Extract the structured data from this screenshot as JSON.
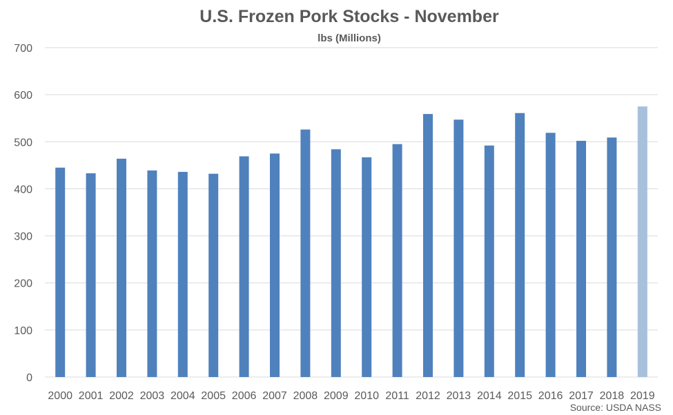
{
  "chart_data": {
    "type": "bar",
    "title": "U.S. Frozen Pork Stocks - November",
    "subtitle": "lbs (Millions)",
    "source": "Source: USDA NASS",
    "categories": [
      "2000",
      "2001",
      "2002",
      "2003",
      "2004",
      "2005",
      "2006",
      "2007",
      "2008",
      "2009",
      "2010",
      "2011",
      "2012",
      "2013",
      "2014",
      "2015",
      "2016",
      "2017",
      "2018",
      "2019"
    ],
    "values": [
      445,
      433,
      464,
      439,
      436,
      432,
      469,
      475,
      526,
      484,
      467,
      495,
      559,
      547,
      492,
      561,
      519,
      502,
      509,
      575
    ],
    "ylim": [
      0,
      700
    ],
    "yticks": [
      0,
      100,
      200,
      300,
      400,
      500,
      600,
      700
    ],
    "grid": true,
    "legend": "none",
    "colors": {
      "bar": "#4f81bd",
      "highlight_bar": "#a7c0dc",
      "gridline": "#d9d9d9",
      "text": "#595959"
    },
    "highlight_category": "2019"
  }
}
